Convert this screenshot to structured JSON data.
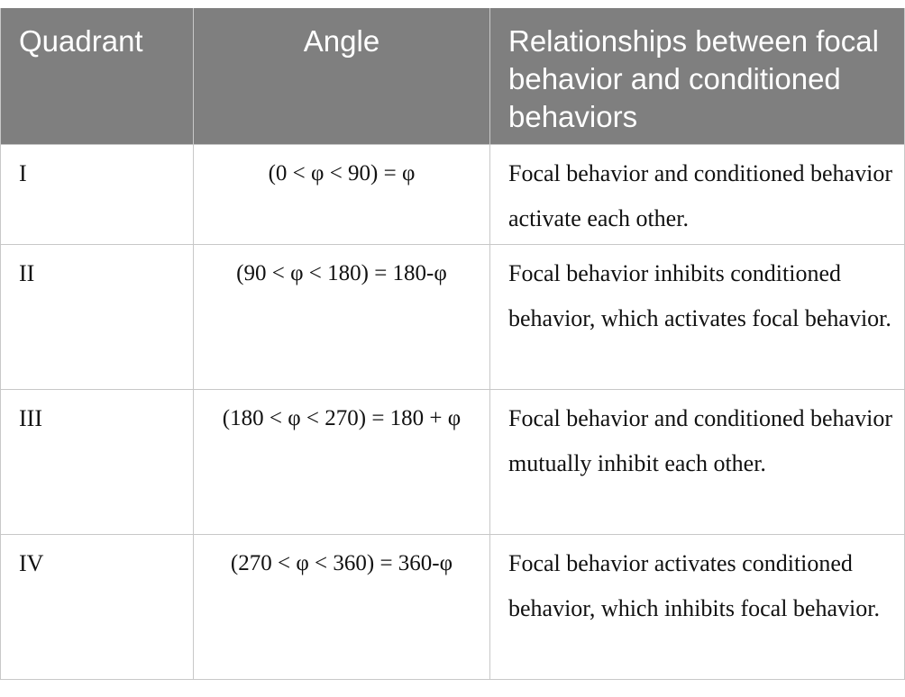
{
  "table": {
    "headers": [
      "Quadrant",
      "Angle",
      "Relationships between focal behavior and conditioned behaviors"
    ],
    "rows": [
      {
        "quadrant": "I",
        "angle": "(0 < φ < 90) = φ",
        "relationship": "Focal behavior and conditioned behavior activate each other."
      },
      {
        "quadrant": "II",
        "angle": "(90 < φ < 180) = 180-φ",
        "relationship": "Focal behavior inhibits conditioned behavior, which activates focal behavior."
      },
      {
        "quadrant": "III",
        "angle": "(180 < φ < 270) = 180 + φ",
        "relationship": "Focal behavior and conditioned behavior mutually inhibit each other."
      },
      {
        "quadrant": "IV",
        "angle": "(270 < φ < 360) = 360-φ",
        "relationship": "Focal behavior activates conditioned behavior, which inhibits focal behavior."
      }
    ]
  },
  "colors": {
    "header_bg": "#7f7f7f",
    "header_text": "#ffffff",
    "border": "#c8c8c8"
  }
}
